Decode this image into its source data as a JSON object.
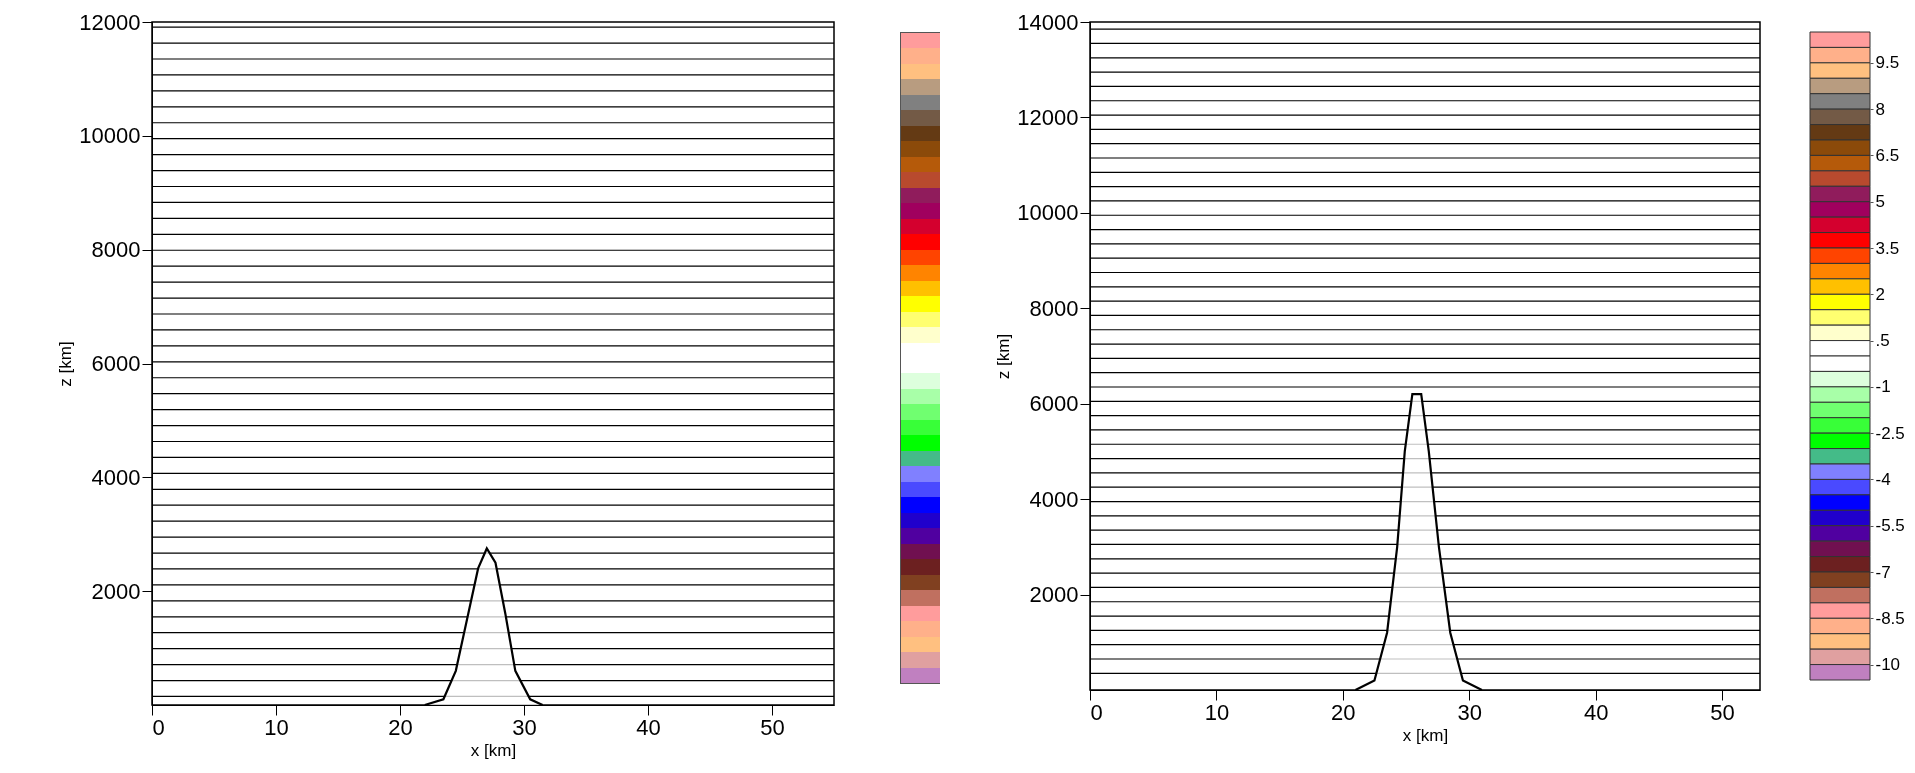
{
  "chart_data": [
    {
      "type": "line",
      "xlabel": "x [km]",
      "ylabel": "z [km]",
      "xlim": [
        0,
        55
      ],
      "xticks": [
        0,
        10,
        20,
        30,
        40,
        50
      ],
      "ylim": [
        0,
        12000
      ],
      "yticks": [
        2000,
        4000,
        6000,
        8000,
        10000,
        12000
      ],
      "series": [
        {
          "type": "area",
          "color": "#000000",
          "x": [
            22,
            23.5,
            24.5,
            25.5,
            26.3,
            27,
            27.7,
            28.5,
            29.3,
            30.5,
            31.5
          ],
          "values": [
            0,
            100,
            600,
            1600,
            2400,
            2750,
            2500,
            1600,
            600,
            100,
            0
          ]
        },
        {
          "color": "#000000",
          "x": [
            0,
            55
          ],
          "values": [
            150,
            150
          ]
        },
        {
          "color": "#000000",
          "x": [
            0,
            55
          ],
          "values": [
            430,
            430
          ]
        },
        {
          "color": "#000000",
          "x": [
            0,
            55
          ],
          "values": [
            710,
            710
          ]
        },
        {
          "color": "#000000",
          "x": [
            0,
            55
          ],
          "values": [
            990,
            990
          ]
        },
        {
          "color": "#000000",
          "x": [
            0,
            55
          ],
          "values": [
            1270,
            1270
          ]
        },
        {
          "color": "#000000",
          "x": [
            0,
            55
          ],
          "values": [
            1550,
            1550
          ]
        },
        {
          "color": "#000000",
          "x": [
            0,
            55
          ],
          "values": [
            1830,
            1830
          ]
        },
        {
          "color": "#000000",
          "x": [
            0,
            55
          ],
          "values": [
            2110,
            2110
          ]
        },
        {
          "color": "#000000",
          "x": [
            0,
            55
          ],
          "values": [
            2390,
            2390
          ]
        },
        {
          "color": "#000000",
          "x": [
            0,
            55
          ],
          "values": [
            2670,
            2670
          ]
        },
        {
          "color": "#000000",
          "x": [
            0,
            55
          ],
          "values": [
            2950,
            2950
          ]
        },
        {
          "color": "#000000",
          "x": [
            0,
            55
          ],
          "values": [
            3230,
            3230
          ]
        },
        {
          "color": "#000000",
          "x": [
            0,
            55
          ],
          "values": [
            3510,
            3510
          ]
        },
        {
          "color": "#000000",
          "x": [
            0,
            55
          ],
          "values": [
            3790,
            3790
          ]
        },
        {
          "color": "#000000",
          "x": [
            0,
            55
          ],
          "values": [
            4070,
            4070
          ]
        },
        {
          "color": "#000000",
          "x": [
            0,
            55
          ],
          "values": [
            4350,
            4350
          ]
        },
        {
          "color": "#000000",
          "x": [
            0,
            55
          ],
          "values": [
            4630,
            4630
          ]
        },
        {
          "color": "#000000",
          "x": [
            0,
            55
          ],
          "values": [
            4910,
            4910
          ]
        },
        {
          "color": "#000000",
          "x": [
            0,
            55
          ],
          "values": [
            5190,
            5190
          ]
        },
        {
          "color": "#000000",
          "x": [
            0,
            55
          ],
          "values": [
            5470,
            5470
          ]
        },
        {
          "color": "#000000",
          "x": [
            0,
            55
          ],
          "values": [
            5750,
            5750
          ]
        },
        {
          "color": "#000000",
          "x": [
            0,
            55
          ],
          "values": [
            6030,
            6030
          ]
        },
        {
          "color": "#000000",
          "x": [
            0,
            55
          ],
          "values": [
            6310,
            6310
          ]
        },
        {
          "color": "#000000",
          "x": [
            0,
            55
          ],
          "values": [
            6590,
            6590
          ]
        },
        {
          "color": "#000000",
          "x": [
            0,
            55
          ],
          "values": [
            6870,
            6870
          ]
        },
        {
          "color": "#000000",
          "x": [
            0,
            55
          ],
          "values": [
            7150,
            7150
          ]
        },
        {
          "color": "#000000",
          "x": [
            0,
            55
          ],
          "values": [
            7430,
            7430
          ]
        },
        {
          "color": "#000000",
          "x": [
            0,
            55
          ],
          "values": [
            7710,
            7710
          ]
        },
        {
          "color": "#000000",
          "x": [
            0,
            55
          ],
          "values": [
            7990,
            7990
          ]
        },
        {
          "color": "#000000",
          "x": [
            0,
            55
          ],
          "values": [
            8270,
            8270
          ]
        },
        {
          "color": "#000000",
          "x": [
            0,
            55
          ],
          "values": [
            8550,
            8550
          ]
        },
        {
          "color": "#000000",
          "x": [
            0,
            55
          ],
          "values": [
            8830,
            8830
          ]
        },
        {
          "color": "#000000",
          "x": [
            0,
            55
          ],
          "values": [
            9110,
            9110
          ]
        },
        {
          "color": "#000000",
          "x": [
            0,
            55
          ],
          "values": [
            9390,
            9390
          ]
        },
        {
          "color": "#000000",
          "x": [
            0,
            55
          ],
          "values": [
            9670,
            9670
          ]
        },
        {
          "color": "#000000",
          "x": [
            0,
            55
          ],
          "values": [
            9950,
            9950
          ]
        },
        {
          "color": "#000000",
          "x": [
            0,
            55
          ],
          "values": [
            10230,
            10230
          ]
        },
        {
          "color": "#000000",
          "x": [
            0,
            55
          ],
          "values": [
            10510,
            10510
          ]
        },
        {
          "color": "#000000",
          "x": [
            0,
            55
          ],
          "values": [
            10790,
            10790
          ]
        },
        {
          "color": "#000000",
          "x": [
            0,
            55
          ],
          "values": [
            11070,
            11070
          ]
        },
        {
          "color": "#000000",
          "x": [
            0,
            55
          ],
          "values": [
            11350,
            11350
          ]
        },
        {
          "color": "#000000",
          "x": [
            0,
            55
          ],
          "values": [
            11630,
            11630
          ]
        },
        {
          "color": "#000000",
          "x": [
            0,
            55
          ],
          "values": [
            11910,
            11910
          ]
        }
      ]
    },
    {
      "type": "line",
      "xlabel": "x [km]",
      "ylabel": "z [km]",
      "xlim": [
        0,
        53
      ],
      "xticks": [
        0,
        10,
        20,
        30,
        40,
        50
      ],
      "ylim": [
        0,
        14000
      ],
      "yticks": [
        2000,
        4000,
        6000,
        8000,
        10000,
        12000,
        14000
      ],
      "clim": [
        -10.5,
        10.5
      ],
      "cticks": [
        -10,
        -8.5,
        -7,
        -5.5,
        -4,
        -2.5,
        -1,
        {
          "value": 0.5,
          "label": ".5"
        },
        2,
        3.5,
        5,
        6.5,
        8,
        9.5
      ],
      "series": [
        {
          "type": "area",
          "color": "#000000",
          "x": [
            21,
            22.5,
            23.5,
            24.3,
            24.9,
            25.5,
            26.2,
            26.8,
            27.6,
            28.5,
            29.5,
            31
          ],
          "values": [
            0,
            200,
            1200,
            3000,
            5000,
            6200,
            6200,
            5000,
            3000,
            1200,
            200,
            0
          ]
        },
        {
          "color": "#000000",
          "x": [
            0,
            53
          ],
          "values": [
            350,
            350
          ]
        },
        {
          "color": "#000000",
          "x": [
            0,
            53
          ],
          "values": [
            650,
            650
          ]
        },
        {
          "color": "#000000",
          "x": [
            0,
            53
          ],
          "values": [
            950,
            950
          ]
        },
        {
          "color": "#000000",
          "x": [
            0,
            53
          ],
          "values": [
            1250,
            1250
          ]
        },
        {
          "color": "#000000",
          "x": [
            0,
            53
          ],
          "values": [
            1550,
            1550
          ]
        },
        {
          "color": "#000000",
          "x": [
            0,
            53
          ],
          "values": [
            1850,
            1850
          ]
        },
        {
          "color": "#000000",
          "x": [
            0,
            53
          ],
          "values": [
            2150,
            2150
          ]
        },
        {
          "color": "#000000",
          "x": [
            0,
            53
          ],
          "values": [
            2450,
            2450
          ]
        },
        {
          "color": "#000000",
          "x": [
            0,
            53
          ],
          "values": [
            2750,
            2750
          ]
        },
        {
          "color": "#000000",
          "x": [
            0,
            53
          ],
          "values": [
            3050,
            3050
          ]
        },
        {
          "color": "#000000",
          "x": [
            0,
            53
          ],
          "values": [
            3350,
            3350
          ]
        },
        {
          "color": "#000000",
          "x": [
            0,
            53
          ],
          "values": [
            3650,
            3650
          ]
        },
        {
          "color": "#000000",
          "x": [
            0,
            53
          ],
          "values": [
            3950,
            3950
          ]
        },
        {
          "color": "#000000",
          "x": [
            0,
            53
          ],
          "values": [
            4250,
            4250
          ]
        },
        {
          "color": "#000000",
          "x": [
            0,
            53
          ],
          "values": [
            4550,
            4550
          ]
        },
        {
          "color": "#000000",
          "x": [
            0,
            53
          ],
          "values": [
            4850,
            4850
          ]
        },
        {
          "color": "#000000",
          "x": [
            0,
            53
          ],
          "values": [
            5150,
            5150
          ]
        },
        {
          "color": "#000000",
          "x": [
            0,
            53
          ],
          "values": [
            5450,
            5450
          ]
        },
        {
          "color": "#000000",
          "x": [
            0,
            53
          ],
          "values": [
            5750,
            5750
          ]
        },
        {
          "color": "#000000",
          "x": [
            0,
            53
          ],
          "values": [
            6050,
            6050
          ]
        },
        {
          "color": "#000000",
          "x": [
            0,
            53
          ],
          "values": [
            6350,
            6350
          ]
        },
        {
          "color": "#000000",
          "x": [
            0,
            53
          ],
          "values": [
            6650,
            6650
          ]
        },
        {
          "color": "#000000",
          "x": [
            0,
            53
          ],
          "values": [
            6950,
            6950
          ]
        },
        {
          "color": "#000000",
          "x": [
            0,
            53
          ],
          "values": [
            7250,
            7250
          ]
        },
        {
          "color": "#000000",
          "x": [
            0,
            53
          ],
          "values": [
            7550,
            7550
          ]
        },
        {
          "color": "#000000",
          "x": [
            0,
            53
          ],
          "values": [
            7850,
            7850
          ]
        },
        {
          "color": "#000000",
          "x": [
            0,
            53
          ],
          "values": [
            8150,
            8150
          ]
        },
        {
          "color": "#000000",
          "x": [
            0,
            53
          ],
          "values": [
            8450,
            8450
          ]
        },
        {
          "color": "#000000",
          "x": [
            0,
            53
          ],
          "values": [
            8750,
            8750
          ]
        },
        {
          "color": "#000000",
          "x": [
            0,
            53
          ],
          "values": [
            9050,
            9050
          ]
        },
        {
          "color": "#000000",
          "x": [
            0,
            53
          ],
          "values": [
            9350,
            9350
          ]
        },
        {
          "color": "#000000",
          "x": [
            0,
            53
          ],
          "values": [
            9650,
            9650
          ]
        },
        {
          "color": "#000000",
          "x": [
            0,
            53
          ],
          "values": [
            9950,
            9950
          ]
        },
        {
          "color": "#000000",
          "x": [
            0,
            53
          ],
          "values": [
            10250,
            10250
          ]
        },
        {
          "color": "#000000",
          "x": [
            0,
            53
          ],
          "values": [
            10550,
            10550
          ]
        },
        {
          "color": "#000000",
          "x": [
            0,
            53
          ],
          "values": [
            10850,
            10850
          ]
        },
        {
          "color": "#000000",
          "x": [
            0,
            53
          ],
          "values": [
            11150,
            11150
          ]
        },
        {
          "color": "#000000",
          "x": [
            0,
            53
          ],
          "values": [
            11450,
            11450
          ]
        },
        {
          "color": "#000000",
          "x": [
            0,
            53
          ],
          "values": [
            11750,
            11750
          ]
        },
        {
          "color": "#000000",
          "x": [
            0,
            53
          ],
          "values": [
            12050,
            12050
          ]
        },
        {
          "color": "#000000",
          "x": [
            0,
            53
          ],
          "values": [
            12350,
            12350
          ]
        },
        {
          "color": "#000000",
          "x": [
            0,
            53
          ],
          "values": [
            12650,
            12650
          ]
        },
        {
          "color": "#000000",
          "x": [
            0,
            53
          ],
          "values": [
            12950,
            12950
          ]
        },
        {
          "color": "#000000",
          "x": [
            0,
            53
          ],
          "values": [
            13250,
            13250
          ]
        },
        {
          "color": "#000000",
          "x": [
            0,
            53
          ],
          "values": [
            13550,
            13550
          ]
        },
        {
          "color": "#000000",
          "x": [
            0,
            53
          ],
          "values": [
            13850,
            13850
          ]
        }
      ]
    }
  ]
}
